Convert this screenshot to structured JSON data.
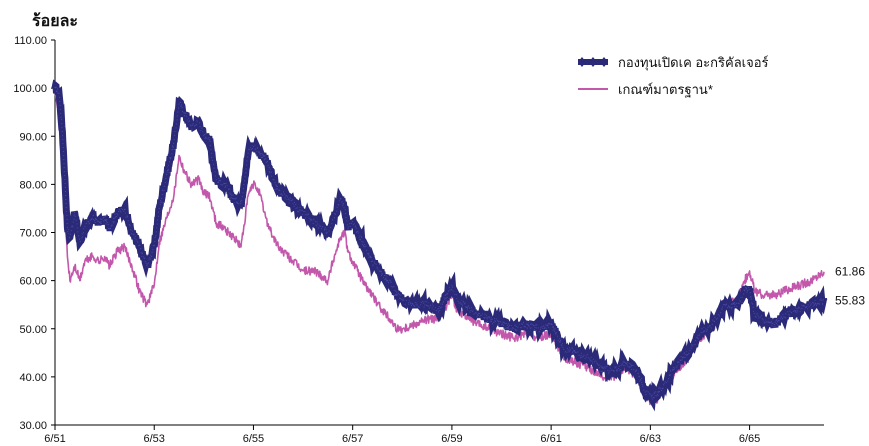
{
  "chart_data": {
    "type": "line",
    "ylabel": "ร้อยละ",
    "ylim": [
      30,
      110
    ],
    "yticks": [
      "30.00",
      "40.00",
      "50.00",
      "60.00",
      "70.00",
      "80.00",
      "90.00",
      "100.00",
      "110.00"
    ],
    "xlim": [
      0,
      15.5
    ],
    "xticks": [
      {
        "x": 0,
        "label": "6/51"
      },
      {
        "x": 2,
        "label": "6/53"
      },
      {
        "x": 4,
        "label": "6/55"
      },
      {
        "x": 6,
        "label": "6/57"
      },
      {
        "x": 8,
        "label": "6/59"
      },
      {
        "x": 10,
        "label": "6/61"
      },
      {
        "x": 12,
        "label": "6/63"
      },
      {
        "x": 14,
        "label": "6/65"
      }
    ],
    "legend_position": "top-right",
    "series": [
      {
        "name": "กองทุนเปิดเค อะกริคัลเจอร์",
        "color": "#2b2a78",
        "marker": "diamond",
        "end_label": "55.83",
        "x": [
          0.0,
          0.08,
          0.15,
          0.25,
          0.3,
          0.4,
          0.5,
          0.6,
          0.75,
          0.9,
          1.0,
          1.1,
          1.25,
          1.4,
          1.55,
          1.7,
          1.85,
          2.0,
          2.1,
          2.25,
          2.4,
          2.5,
          2.6,
          2.75,
          2.9,
          3.0,
          3.1,
          3.25,
          3.4,
          3.5,
          3.6,
          3.75,
          3.9,
          4.0,
          4.1,
          4.25,
          4.4,
          4.5,
          4.6,
          4.8,
          5.0,
          5.25,
          5.5,
          5.6,
          5.75,
          5.85,
          5.9,
          6.0,
          6.1,
          6.25,
          6.4,
          6.5,
          6.6,
          6.75,
          6.9,
          7.0,
          7.25,
          7.5,
          7.75,
          8.0,
          8.1,
          8.25,
          8.5,
          8.75,
          9.0,
          9.25,
          9.5,
          9.75,
          10.0,
          10.25,
          10.5,
          10.75,
          11.0,
          11.25,
          11.5,
          11.75,
          11.9,
          12.0,
          12.1,
          12.25,
          12.5,
          12.75,
          13.0,
          13.25,
          13.5,
          13.75,
          13.9,
          14.0,
          14.1,
          14.25,
          14.5,
          14.75,
          15.0,
          15.25,
          15.5
        ],
        "values": [
          100,
          99,
          91,
          71,
          69,
          74,
          68,
          71,
          73,
          72,
          73,
          71,
          74,
          75,
          70,
          67,
          63,
          67,
          75,
          82,
          89,
          97,
          95,
          92,
          93,
          90,
          90,
          81,
          80,
          79,
          77,
          76,
          87,
          88,
          87,
          85,
          81,
          79,
          78,
          76,
          74,
          72,
          70,
          73,
          77,
          75,
          71,
          72,
          70,
          67,
          64,
          63,
          61,
          60,
          57,
          56,
          55,
          55,
          54,
          59,
          56,
          55,
          53,
          52,
          51,
          50,
          51,
          50,
          51,
          46,
          45,
          44,
          42,
          41,
          43,
          41,
          37,
          36,
          36,
          38,
          42,
          45,
          49,
          51,
          55,
          55,
          58,
          58,
          53,
          52,
          51,
          53,
          54,
          55,
          55.83
        ]
      },
      {
        "name": "เกณฑ์มาตรฐาน*",
        "color": "#c257ab",
        "marker": "none",
        "end_label": "61.86",
        "x": [
          0.0,
          0.08,
          0.15,
          0.25,
          0.3,
          0.4,
          0.5,
          0.6,
          0.75,
          0.9,
          1.0,
          1.1,
          1.25,
          1.4,
          1.55,
          1.7,
          1.85,
          2.0,
          2.1,
          2.25,
          2.4,
          2.5,
          2.6,
          2.75,
          2.9,
          3.0,
          3.1,
          3.25,
          3.4,
          3.5,
          3.6,
          3.75,
          3.9,
          4.0,
          4.1,
          4.25,
          4.4,
          4.5,
          4.6,
          4.8,
          5.0,
          5.25,
          5.5,
          5.6,
          5.75,
          5.85,
          5.9,
          6.0,
          6.1,
          6.25,
          6.4,
          6.5,
          6.6,
          6.75,
          6.9,
          7.0,
          7.25,
          7.5,
          7.75,
          8.0,
          8.1,
          8.25,
          8.5,
          8.75,
          9.0,
          9.25,
          9.5,
          9.75,
          10.0,
          10.25,
          10.5,
          10.75,
          11.0,
          11.25,
          11.5,
          11.75,
          11.9,
          12.0,
          12.1,
          12.25,
          12.5,
          12.75,
          13.0,
          13.25,
          13.5,
          13.75,
          13.9,
          14.0,
          14.1,
          14.25,
          14.5,
          14.75,
          15.0,
          15.25,
          15.5
        ],
        "values": [
          100,
          95,
          86,
          65,
          60,
          63,
          60,
          64,
          65,
          64,
          65,
          63,
          66,
          67,
          63,
          58,
          55,
          59,
          68,
          73,
          78,
          86,
          83,
          80,
          81,
          78,
          78,
          72,
          71,
          70,
          69,
          67,
          78,
          80,
          79,
          73,
          69,
          67,
          66,
          64,
          62,
          62,
          60,
          64,
          69,
          70,
          66,
          64,
          62,
          59,
          57,
          55,
          54,
          52,
          50,
          50,
          51,
          52,
          52,
          57,
          54,
          53,
          51,
          50,
          49,
          48,
          49,
          48,
          49,
          44,
          43,
          42,
          40,
          40,
          42,
          40,
          36,
          35,
          35,
          37,
          41,
          44,
          48,
          50,
          55,
          56,
          60,
          62,
          58,
          57,
          57,
          58,
          59,
          60,
          61.86
        ]
      }
    ]
  }
}
